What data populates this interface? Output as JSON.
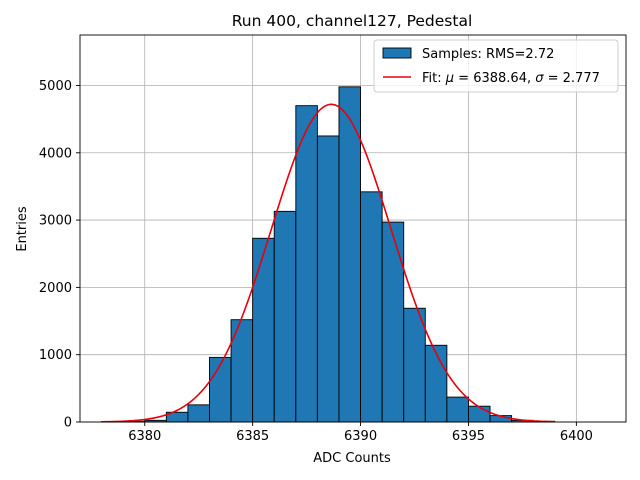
{
  "chart_data": {
    "type": "bar",
    "title": "Run 400, channel127, Pedestal",
    "xlabel": "ADC Counts",
    "ylabel": "Entries",
    "xlim": [
      6377,
      6402.3
    ],
    "ylim": [
      0,
      5750
    ],
    "xticks": [
      6380,
      6385,
      6390,
      6395,
      6400
    ],
    "yticks": [
      0,
      1000,
      2000,
      3000,
      4000,
      5000
    ],
    "grid": true,
    "legend_position": "top-right",
    "histogram": {
      "name": "Samples: RMS=2.72",
      "color": "#1f77b4",
      "bin_edges": [
        6378,
        6379,
        6380,
        6381,
        6382,
        6383,
        6384,
        6385,
        6386,
        6387,
        6388,
        6389,
        6390,
        6391,
        6392,
        6393,
        6394,
        6395,
        6396,
        6397,
        6398,
        6399
      ],
      "values": [
        5,
        10,
        25,
        145,
        255,
        960,
        1520,
        2730,
        3130,
        4700,
        4250,
        4980,
        3420,
        2970,
        1690,
        1140,
        370,
        235,
        95,
        25,
        10
      ]
    },
    "fit": {
      "name": "Fit: μ = 6388.64, σ = 2.777",
      "label_text": "Fit: ",
      "mu_symbol": "μ",
      "mu_text": " = 6388.64, ",
      "sigma_symbol": "σ",
      "sigma_text": " = 2.777",
      "color": "#e8000b",
      "mu": 6388.64,
      "sigma": 2.777,
      "amplitude": 4720,
      "x_range": [
        6378,
        6399
      ]
    }
  }
}
